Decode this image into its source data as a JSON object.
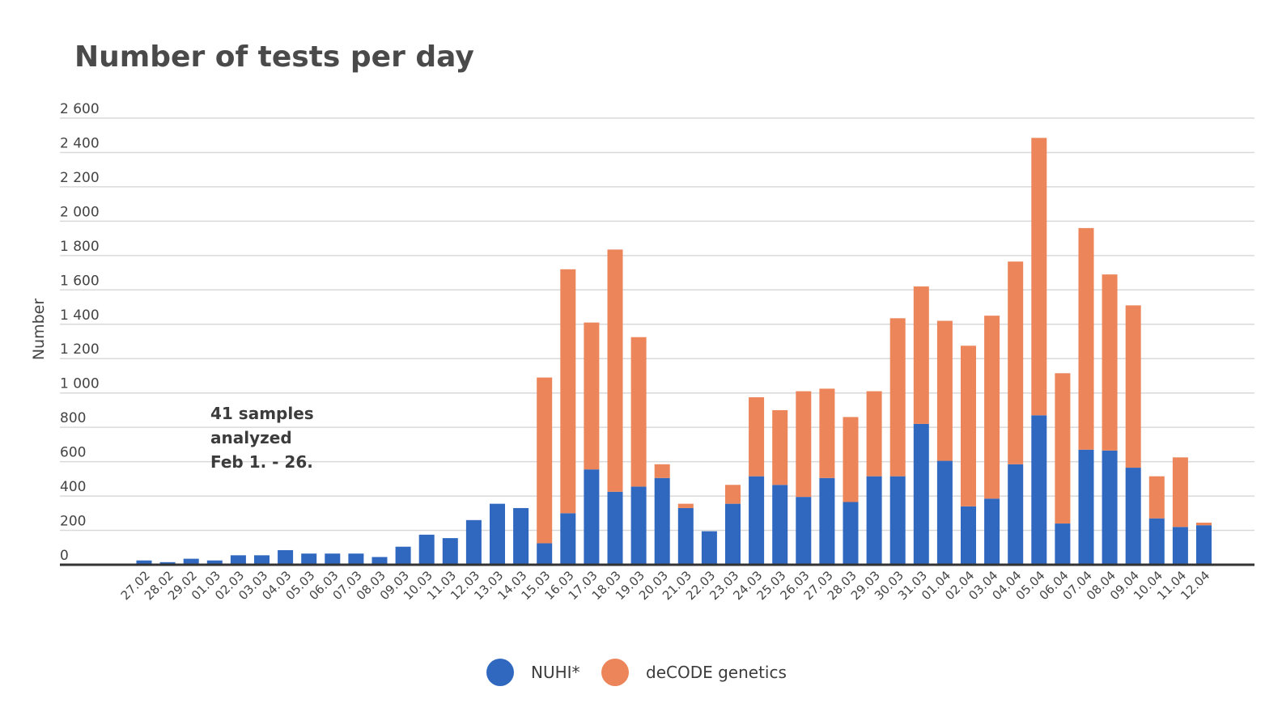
{
  "chart_data": {
    "type": "bar",
    "stacked": true,
    "title": "Number of tests per day",
    "ylabel": "Number",
    "xlabel": "",
    "ylim": [
      0,
      2600
    ],
    "yticks": [
      0,
      200,
      400,
      600,
      800,
      1000,
      1200,
      1400,
      1600,
      1800,
      2000,
      2200,
      2400,
      2600
    ],
    "ytick_labels": [
      "0",
      "200",
      "400",
      "600",
      "800",
      "1 000",
      "1 200",
      "1 400",
      "1 600",
      "1 800",
      "2 000",
      "2 200",
      "2 400",
      "2 600"
    ],
    "grid": true,
    "legend_position": "bottom-center",
    "categories": [
      "27.02",
      "28.02",
      "29.02",
      "01.03",
      "02.03",
      "03.03",
      "04.03",
      "05.03",
      "06.03",
      "07.03",
      "08.03",
      "09.03",
      "10.03",
      "11.03",
      "12.03",
      "13.03",
      "14.03",
      "15.03",
      "16.03",
      "17.03",
      "18.03",
      "19.03",
      "20.03",
      "21.03",
      "22.03",
      "23.03",
      "24.03",
      "25.03",
      "26.03",
      "27.03",
      "28.03",
      "29.03",
      "30.03",
      "31.03",
      "01.04",
      "02.04",
      "03.04",
      "04.04",
      "05.04",
      "06.04",
      "07.04",
      "08.04",
      "09.04",
      "10.04",
      "11.04",
      "12.04"
    ],
    "series": [
      {
        "name": "NUHI*",
        "color": "#3068c0",
        "values": [
          25,
          15,
          35,
          25,
          55,
          55,
          85,
          65,
          65,
          65,
          45,
          105,
          175,
          155,
          260,
          355,
          330,
          125,
          300,
          555,
          425,
          455,
          505,
          330,
          195,
          355,
          515,
          465,
          395,
          505,
          365,
          515,
          515,
          820,
          605,
          340,
          385,
          585,
          870,
          240,
          670,
          665,
          565,
          270,
          220,
          230
        ]
      },
      {
        "name": "deCODE genetics",
        "color": "#ed855a",
        "values": [
          0,
          0,
          0,
          0,
          0,
          0,
          0,
          0,
          0,
          0,
          0,
          0,
          0,
          0,
          0,
          0,
          0,
          965,
          1420,
          855,
          1410,
          870,
          80,
          25,
          0,
          110,
          460,
          435,
          615,
          520,
          495,
          495,
          920,
          800,
          815,
          935,
          1065,
          1180,
          1615,
          875,
          1290,
          1025,
          945,
          245,
          405,
          15
        ]
      }
    ],
    "annotation": {
      "lines": [
        "41 samples",
        "analyzed",
        "Feb 1. - 26."
      ]
    }
  }
}
